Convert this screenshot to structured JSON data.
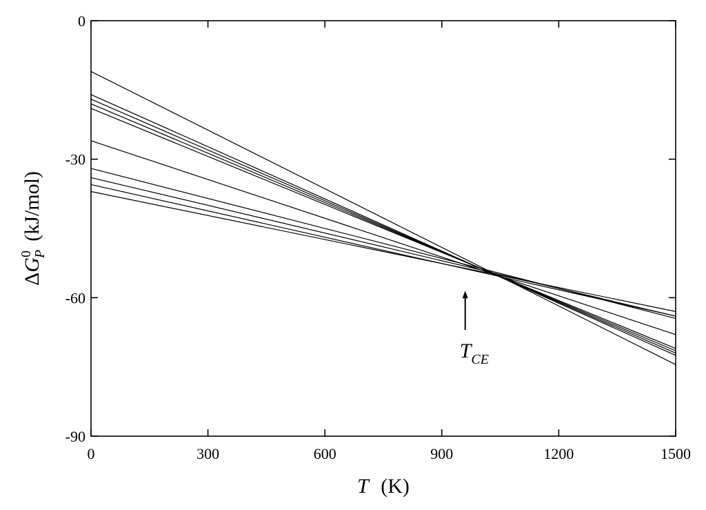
{
  "chart_data": {
    "type": "line",
    "title": "",
    "xlabel": {
      "symbol": "T",
      "unit": "(K)"
    },
    "ylabel": {
      "prefix": "Δ",
      "symbol": "G",
      "superscript": "0",
      "subscript": "P",
      "unit": "(kJ/mol)"
    },
    "xlim": [
      0,
      1500
    ],
    "ylim": [
      -90,
      0
    ],
    "xticks": [
      0,
      300,
      600,
      900,
      1200,
      1500
    ],
    "yticks": [
      0,
      -30,
      -60,
      -90
    ],
    "xtick_labels": [
      "0",
      "300",
      "600",
      "900",
      "1200",
      "1500"
    ],
    "ytick_labels": [
      "0",
      "-30",
      "-60",
      "-90"
    ],
    "grid": false,
    "legend": "none",
    "line_color": "#000000",
    "series": [
      {
        "x": [
          0,
          1500
        ],
        "y": [
          -11,
          -74.5
        ]
      },
      {
        "x": [
          0,
          1500
        ],
        "y": [
          -16,
          -72.5
        ]
      },
      {
        "x": [
          0,
          1500
        ],
        "y": [
          -17,
          -72
        ]
      },
      {
        "x": [
          0,
          1500
        ],
        "y": [
          -18,
          -71.5
        ]
      },
      {
        "x": [
          0,
          1500
        ],
        "y": [
          -19,
          -71
        ]
      },
      {
        "x": [
          0,
          1500
        ],
        "y": [
          -26,
          -68
        ]
      },
      {
        "x": [
          0,
          1500
        ],
        "y": [
          -32,
          -64.5
        ]
      },
      {
        "x": [
          0,
          1500
        ],
        "y": [
          -34,
          -64
        ]
      },
      {
        "x": [
          0,
          1500
        ],
        "y": [
          -35.5,
          -64
        ]
      },
      {
        "x": [
          0,
          1500
        ],
        "y": [
          -37,
          -63
        ]
      }
    ],
    "annotations": [
      {
        "text_main": "T",
        "text_sub": "CE",
        "arrow_x": 960,
        "arrow_from_y": -67,
        "arrow_to_y": -58.5
      }
    ]
  }
}
